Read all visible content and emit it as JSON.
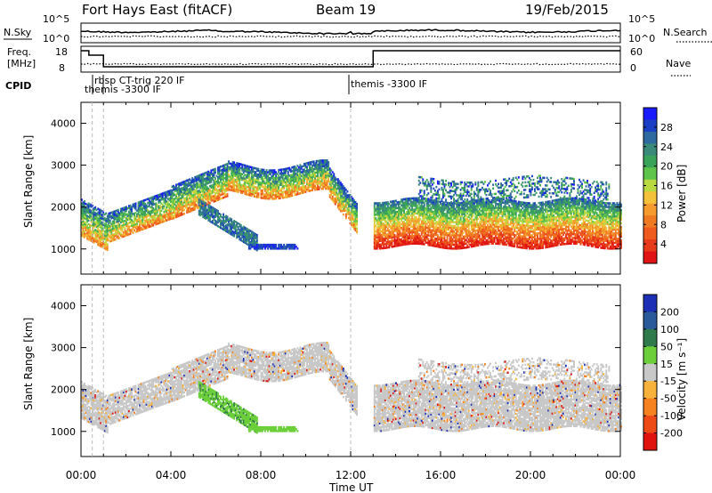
{
  "header": {
    "station": "Fort Hays East (fitACF)",
    "beam": "Beam 19",
    "date": "19/Feb/2015"
  },
  "noise_panel": {
    "left_label": "N.Sky",
    "right_label": "N.Search",
    "left_ticks": [
      "10^5",
      "10^0"
    ],
    "right_ticks": [
      "10^5",
      "10^0"
    ]
  },
  "freq_panel": {
    "left_label_line1": "Freq.",
    "left_label_line2": "[MHz]",
    "right_label": "Nave",
    "left_ticks": [
      "18",
      "8"
    ],
    "right_ticks": [
      "60",
      "0"
    ]
  },
  "cpid": {
    "label": "CPID",
    "entries": [
      "rbsp CT-trig 220 IF",
      "themis -3300 IF",
      "themis -3300 IF"
    ]
  },
  "x_axis": {
    "label": "Time UT",
    "ticks": [
      "00:00",
      "04:00",
      "08:00",
      "12:00",
      "16:00",
      "20:00",
      "00:00"
    ]
  },
  "chart_data": [
    {
      "type": "heatmap",
      "title": "",
      "xlabel": "Time UT",
      "ylabel": "Slant Range [km]",
      "xlim": [
        0,
        24
      ],
      "ylim": [
        400,
        4500
      ],
      "y_ticks": [
        "1000",
        "2000",
        "3000",
        "4000"
      ],
      "colorbar": {
        "label": "Power [dB]",
        "ticks": [
          "4",
          "8",
          "12",
          "16",
          "20",
          "24",
          "28"
        ],
        "colors": [
          "#1a1aff",
          "#1a3fc4",
          "#2e6aa0",
          "#3a8a7a",
          "#3aa35a",
          "#5fc44a",
          "#b9d940",
          "#f3c23a",
          "#f59a2c",
          "#f07a22",
          "#ef5a1f",
          "#e63a1a",
          "#e01414"
        ]
      },
      "ground_scatter": false
    },
    {
      "type": "heatmap",
      "title": "",
      "xlabel": "Time UT",
      "ylabel": "Slant Range [km]",
      "xlim": [
        0,
        24
      ],
      "ylim": [
        400,
        4500
      ],
      "y_ticks": [
        "1000",
        "2000",
        "3000",
        "4000"
      ],
      "colorbar": {
        "label": "Velocity [m s⁻¹]",
        "ticks": [
          "200",
          "100",
          "50",
          "15",
          "-15",
          "-50",
          "-100",
          "-200"
        ],
        "colors": [
          "#1c2fb5",
          "#2a5a9a",
          "#2f7a4a",
          "#6ccf3a",
          "#c8c8c8",
          "#f6b23a",
          "#f5821e",
          "#ee4a16",
          "#e0130f"
        ]
      }
    }
  ],
  "colors": {
    "axis": "#000000",
    "ground_scatter": "#c0c0c0"
  }
}
